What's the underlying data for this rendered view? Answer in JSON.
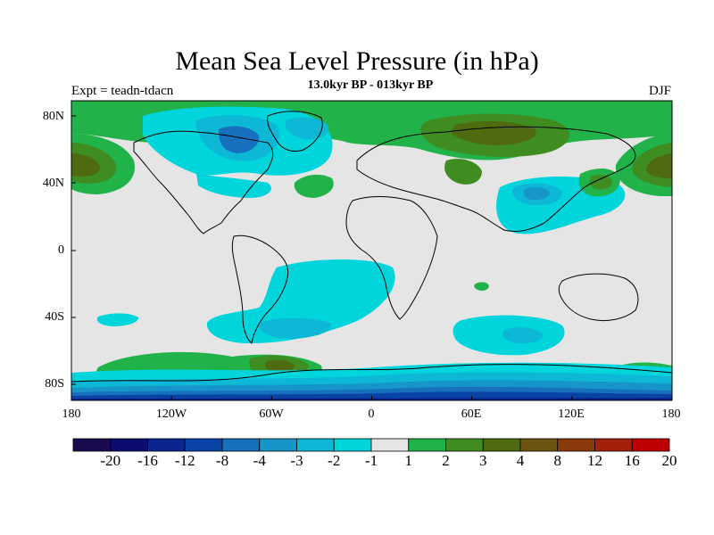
{
  "figure": {
    "title": "Mean Sea Level Pressure (in hPa)",
    "subtitle": "13.0kyr BP - 013kyr BP",
    "left_label": "Expt = teadn-tdacn",
    "right_label": "DJF"
  },
  "map": {
    "lat_labels": [
      "80N",
      "40N",
      "0",
      "40S",
      "80S"
    ],
    "lon_labels": [
      "180",
      "120W",
      "60W",
      "0",
      "60E",
      "120E",
      "180"
    ],
    "background_color": "#e5e5e5",
    "coast_color": "#000000"
  },
  "colorbar": {
    "labels": [
      "-20",
      "-16",
      "-12",
      "-8",
      "-4",
      "-3",
      "-2",
      "-1",
      "1",
      "2",
      "3",
      "4",
      "8",
      "12",
      "16",
      "20"
    ],
    "colors": [
      "#1a0a50",
      "#0b0c6e",
      "#0a2590",
      "#0a43a6",
      "#1670be",
      "#1695c8",
      "#0cb8d6",
      "#00d5dc",
      "#e5e5e5",
      "#21b24a",
      "#3f8c20",
      "#4e6b10",
      "#6b5310",
      "#8a3a0a",
      "#a3200a",
      "#c00000"
    ]
  },
  "anomaly_regions": [
    {
      "name": "north-pacific-high",
      "level": "4"
    },
    {
      "name": "north-america-low",
      "level": "-4"
    },
    {
      "name": "south-atlantic-low",
      "level": "-1"
    },
    {
      "name": "southern-indian-low",
      "level": "-1"
    },
    {
      "name": "east-asia-low",
      "level": "-2"
    },
    {
      "name": "siberia-high",
      "level": "3"
    },
    {
      "name": "antarctic-low",
      "level": "-12"
    },
    {
      "name": "southern-ocean-high",
      "level": "2"
    }
  ]
}
